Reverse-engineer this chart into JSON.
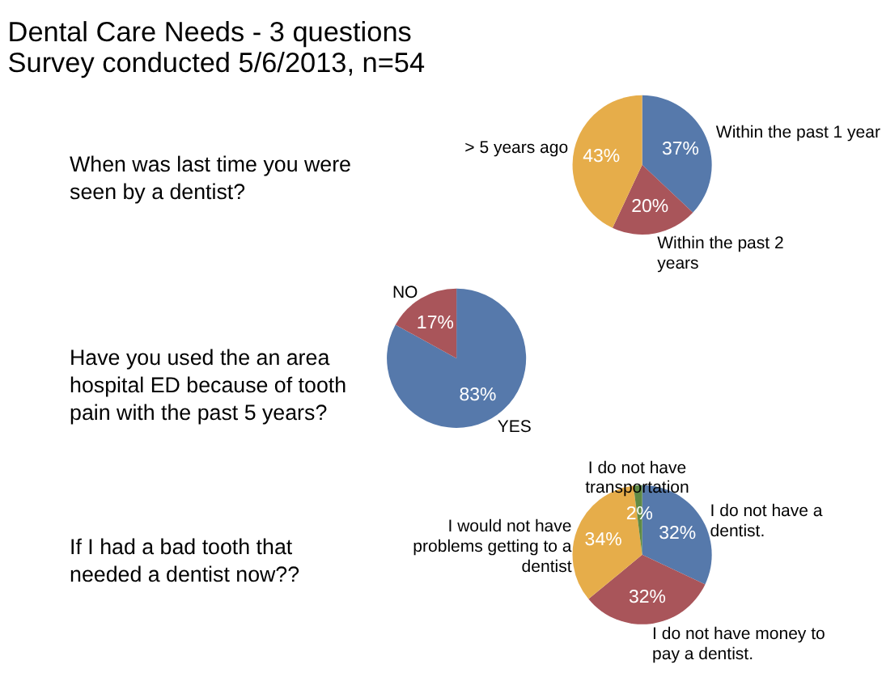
{
  "chart_data": [
    {
      "type": "pie",
      "title": "Dental Care Needs - 3 questions",
      "subtitle": "Survey conducted 5/6/2013, n=54",
      "annotations": [
        "When was last time you were seen by a dentist?"
      ],
      "categories": [
        "Within the past 1 year",
        "Within the past 2 years",
        "> 5 years ago"
      ],
      "values": [
        37,
        20,
        43
      ],
      "value_labels": [
        "37%",
        "20%",
        "43%"
      ],
      "colors": [
        "#5679ab",
        "#a9555a",
        "#e6ad4a"
      ]
    },
    {
      "type": "pie",
      "annotations": [
        "Have you used the an area hospital ED because of tooth pain with the past 5 years?"
      ],
      "categories": [
        "YES",
        "NO"
      ],
      "values": [
        83,
        17
      ],
      "value_labels": [
        "83%",
        "17%"
      ],
      "colors": [
        "#5679ab",
        "#a9555a"
      ]
    },
    {
      "type": "pie",
      "annotations": [
        "If I had a bad tooth that needed a dentist now??"
      ],
      "categories": [
        "I do not have a dentist.",
        "I do not have money to pay a dentist.",
        "I would not have problems getting to a dentist",
        "I do not have transportation"
      ],
      "values": [
        32,
        32,
        34,
        2
      ],
      "value_labels": [
        "32%",
        "32%",
        "34%",
        "2%"
      ],
      "colors": [
        "#5679ab",
        "#a9555a",
        "#e6ad4a",
        "#5f8a45"
      ]
    }
  ]
}
